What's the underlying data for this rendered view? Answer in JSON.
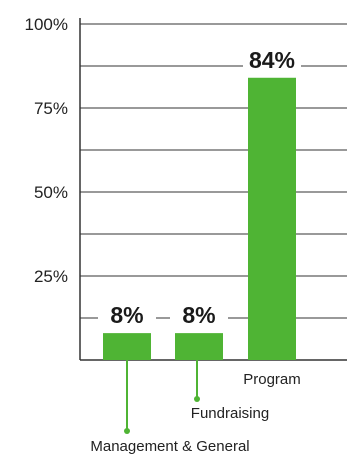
{
  "chart_data": {
    "type": "bar",
    "title": "",
    "xlabel": "",
    "ylabel": "",
    "categories": [
      "Management & General",
      "Fundraising",
      "Program"
    ],
    "values": [
      8,
      8,
      84
    ],
    "value_labels": [
      "8%",
      "8%",
      "84%"
    ],
    "ylim": [
      0,
      100
    ],
    "yticks": [
      {
        "value": 25,
        "label": "25%"
      },
      {
        "value": 50,
        "label": "50%"
      },
      {
        "value": 75,
        "label": "75%"
      },
      {
        "value": 100,
        "label": "100%"
      }
    ],
    "grid": true,
    "legend": "none",
    "bar_color": "#4fb434",
    "grid_color": "#333333"
  }
}
